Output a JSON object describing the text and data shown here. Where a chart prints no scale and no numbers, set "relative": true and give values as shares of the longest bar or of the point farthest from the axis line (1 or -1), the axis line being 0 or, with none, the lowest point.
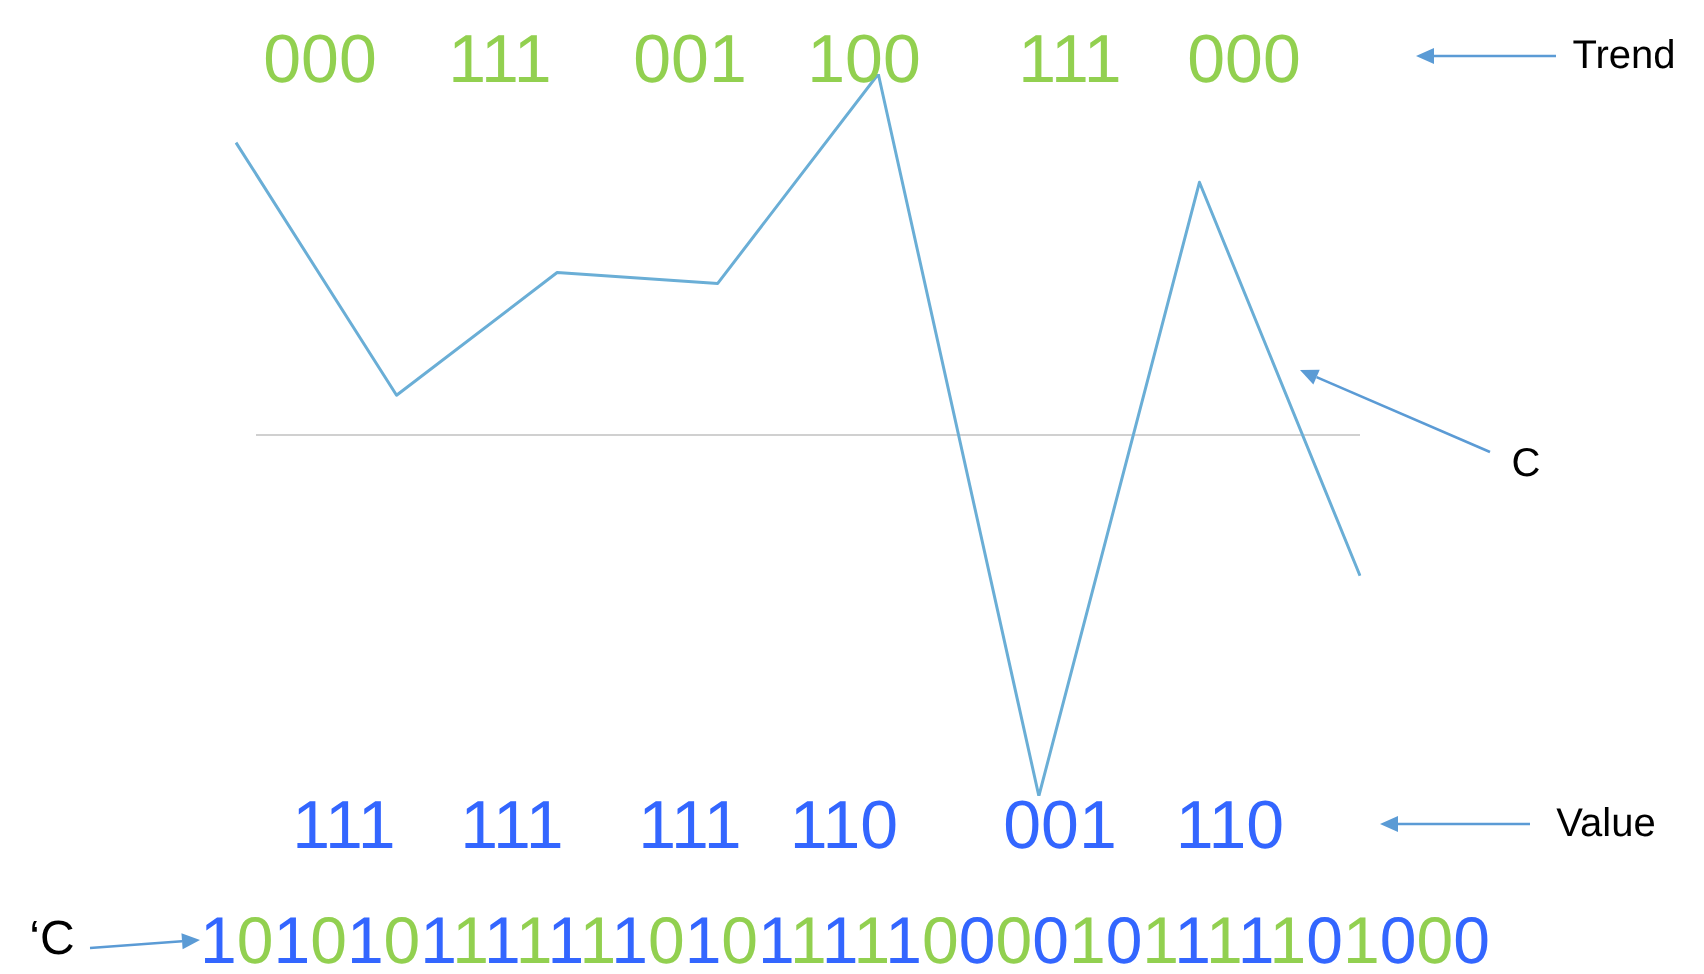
{
  "chart_data": {
    "type": "line",
    "relative": true,
    "categories": [
      null,
      null,
      null,
      null,
      null,
      null,
      null,
      null
    ],
    "series": [
      {
        "color": "#6aaed6",
        "values": [
          0.81,
          0.11,
          0.45,
          0.42,
          1.0,
          -1,
          0.7,
          -0.39
        ]
      }
    ],
    "legend": false,
    "tick_labels": false,
    "marker": "none",
    "annotations": [
      "000",
      "111",
      "001",
      "100",
      "111",
      "000",
      "111",
      "111",
      "111",
      "110",
      "001",
      "110",
      "Trend",
      "C",
      "Value",
      "‘C",
      "1010101111111010111110000101111101000"
    ]
  }
}
